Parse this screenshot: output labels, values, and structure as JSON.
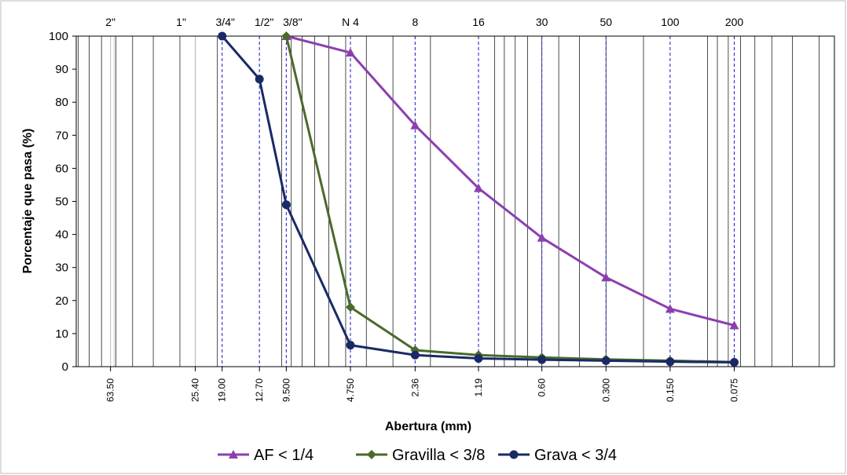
{
  "chart_data": {
    "type": "line",
    "x_scale": "log",
    "x_reversed": true,
    "xlabel": "Abertura (mm)",
    "ylabel": "Porcentaje que pasa (%)",
    "ylim": [
      0,
      100
    ],
    "y_ticks": [
      0,
      10,
      20,
      30,
      40,
      50,
      60,
      70,
      80,
      90,
      100
    ],
    "sieve_labels": [
      "2\"",
      "1\"",
      "3/4\"",
      "1/2\"",
      "3/8\"",
      "N 4",
      "8",
      "16",
      "30",
      "50",
      "100",
      "200"
    ],
    "opening_labels": [
      "63.50",
      "25.40",
      "19.00",
      "12.70",
      "9.500",
      "4.750",
      "2.36",
      "1.19",
      "0.60",
      "0.300",
      "0.150",
      "0.075"
    ],
    "opening_values": [
      63.5,
      25.4,
      19.0,
      12.7,
      9.5,
      4.75,
      2.36,
      1.19,
      0.6,
      0.3,
      0.15,
      0.075
    ],
    "grid": true,
    "legend_position": "bottom",
    "series": [
      {
        "name": "AF < 1/4",
        "color": "#8b3fae",
        "marker": "triangle",
        "x": [
          9.5,
          4.75,
          2.36,
          1.19,
          0.6,
          0.3,
          0.15,
          0.075
        ],
        "y": [
          100,
          95,
          73,
          54,
          39,
          27,
          17.5,
          12.5
        ]
      },
      {
        "name": "Gravilla < 3/8",
        "color": "#4a6a2a",
        "marker": "diamond",
        "x": [
          9.5,
          4.75,
          2.36,
          1.19,
          0.6,
          0.3,
          0.15,
          0.075
        ],
        "y": [
          100,
          18,
          5,
          3.5,
          2.8,
          2.2,
          1.8,
          1.4
        ]
      },
      {
        "name": "Grava < 3/4",
        "color": "#1a2a66",
        "marker": "circle",
        "x": [
          19.0,
          12.7,
          9.5,
          4.75,
          2.36,
          1.19,
          0.6,
          0.3,
          0.15,
          0.075
        ],
        "y": [
          100,
          87,
          49,
          6.5,
          3.5,
          2.5,
          2.1,
          1.8,
          1.5,
          1.3
        ]
      }
    ]
  }
}
